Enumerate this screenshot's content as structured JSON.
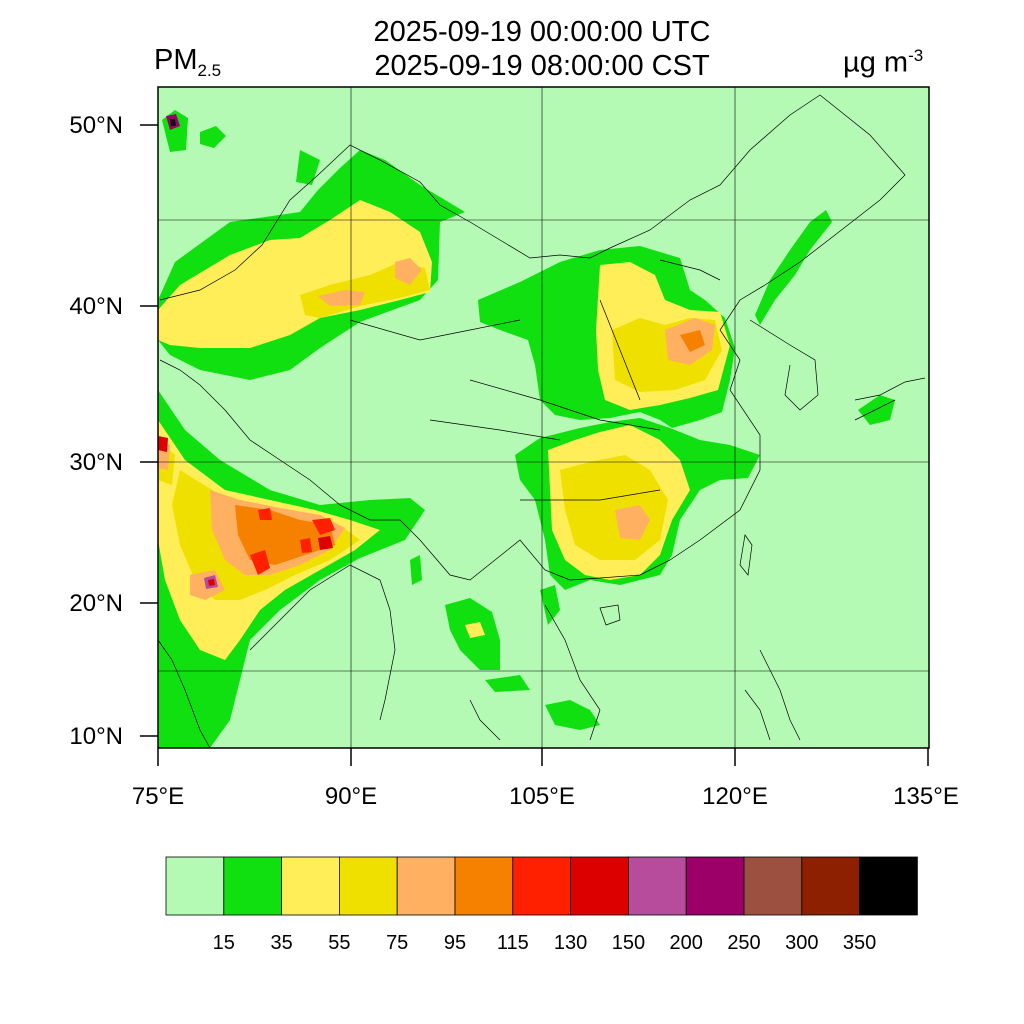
{
  "header": {
    "variable_main": "PM",
    "variable_sub": "2.5",
    "title_line1": "2025-09-19 00:00:00 UTC",
    "title_line2": "2025-09-19 08:00:00 CST",
    "units_main": "µg m",
    "units_sup": "-3"
  },
  "map": {
    "background_color": "#b4fab4",
    "lat_labels": [
      "50°N",
      "40°N",
      "30°N",
      "20°N",
      "10°N"
    ],
    "lon_labels": [
      "75°E",
      "90°E",
      "105°E",
      "120°E",
      "135°E"
    ]
  },
  "colorbar": {
    "colors": [
      "#b4fab4",
      "#10e010",
      "#ffee58",
      "#f0e000",
      "#ffb060",
      "#f68000",
      "#ff2000",
      "#dc0000",
      "#b84c9c",
      "#9c0068",
      "#9c5040",
      "#8c2000",
      "#000000"
    ],
    "labels": [
      "15",
      "35",
      "55",
      "75",
      "95",
      "115",
      "130",
      "150",
      "200",
      "250",
      "300",
      "350"
    ]
  }
}
